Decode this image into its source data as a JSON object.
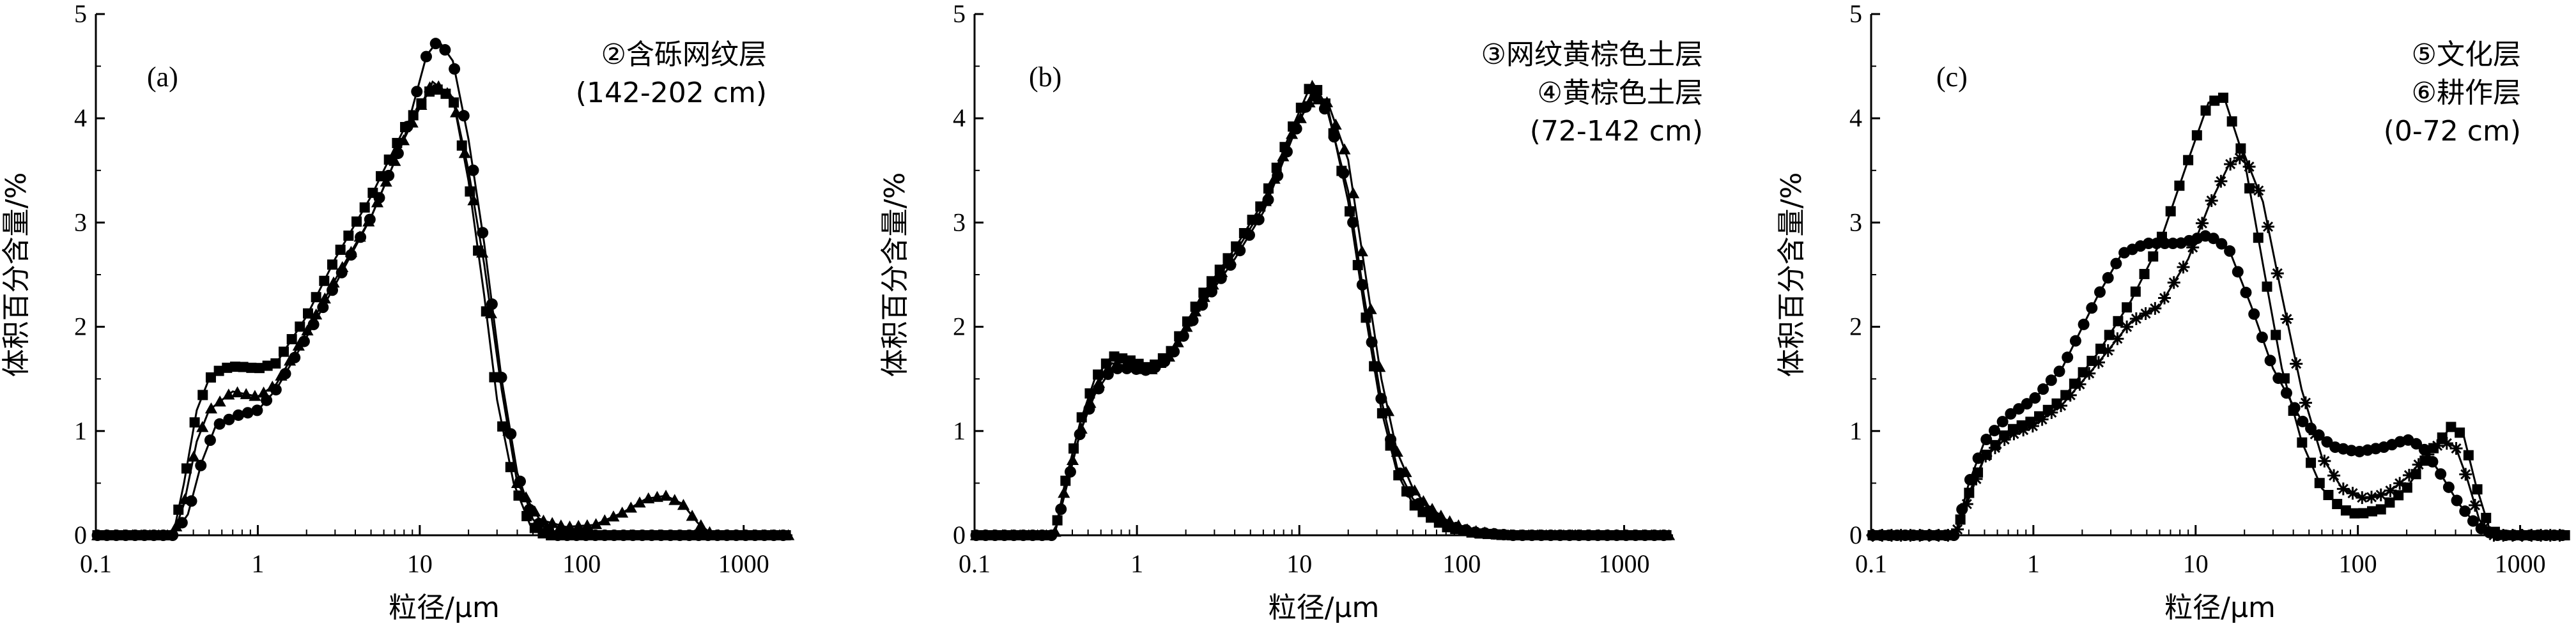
{
  "chart_data": [
    {
      "type": "line",
      "panel_label": "(a)",
      "annotation": [
        "②含砾网纹层",
        "(142-202 cm)"
      ],
      "xlabel": "粒径/μm",
      "ylabel": "体积百分含量/%",
      "x_scale": "log",
      "xlim": [
        0.1,
        2000
      ],
      "ylim": [
        0,
        5
      ],
      "xticks": [
        "0.1",
        "1",
        "10",
        "100",
        "1000"
      ],
      "yticks": [
        "0",
        "1",
        "2",
        "3",
        "4",
        "5"
      ],
      "series": [
        {
          "marker": "square",
          "points": [
            [
              0.1,
              0
            ],
            [
              0.3,
              0
            ],
            [
              0.35,
              0.5
            ],
            [
              0.42,
              1.2
            ],
            [
              0.5,
              1.5
            ],
            [
              0.6,
              1.6
            ],
            [
              0.75,
              1.62
            ],
            [
              1,
              1.6
            ],
            [
              1.3,
              1.65
            ],
            [
              2,
              2.1
            ],
            [
              3,
              2.65
            ],
            [
              5,
              3.25
            ],
            [
              8,
              3.9
            ],
            [
              12,
              4.3
            ],
            [
              16,
              4.2
            ],
            [
              20,
              3.4
            ],
            [
              25,
              2.3
            ],
            [
              30,
              1.3
            ],
            [
              38,
              0.5
            ],
            [
              48,
              0.1
            ],
            [
              60,
              0
            ],
            [
              100,
              0
            ],
            [
              2000,
              0
            ]
          ]
        },
        {
          "marker": "triangle",
          "points": [
            [
              0.1,
              0
            ],
            [
              0.3,
              0
            ],
            [
              0.35,
              0.3
            ],
            [
              0.42,
              0.9
            ],
            [
              0.5,
              1.2
            ],
            [
              0.7,
              1.38
            ],
            [
              1,
              1.33
            ],
            [
              1.3,
              1.45
            ],
            [
              2,
              1.95
            ],
            [
              3,
              2.45
            ],
            [
              5,
              3.05
            ],
            [
              8,
              3.8
            ],
            [
              12,
              4.35
            ],
            [
              16,
              4.2
            ],
            [
              20,
              3.5
            ],
            [
              25,
              2.6
            ],
            [
              32,
              1.4
            ],
            [
              40,
              0.5
            ],
            [
              55,
              0.15
            ],
            [
              80,
              0.08
            ],
            [
              120,
              0.1
            ],
            [
              180,
              0.22
            ],
            [
              250,
              0.35
            ],
            [
              330,
              0.38
            ],
            [
              420,
              0.3
            ],
            [
              520,
              0.12
            ],
            [
              650,
              0
            ],
            [
              2000,
              0
            ]
          ]
        },
        {
          "marker": "circle",
          "points": [
            [
              0.1,
              0
            ],
            [
              0.3,
              0
            ],
            [
              0.37,
              0.2
            ],
            [
              0.45,
              0.7
            ],
            [
              0.55,
              1.05
            ],
            [
              0.75,
              1.15
            ],
            [
              1,
              1.2
            ],
            [
              1.3,
              1.4
            ],
            [
              2,
              1.9
            ],
            [
              3,
              2.4
            ],
            [
              5,
              3.05
            ],
            [
              8,
              3.8
            ],
            [
              11,
              4.6
            ],
            [
              13,
              4.75
            ],
            [
              16,
              4.55
            ],
            [
              20,
              3.8
            ],
            [
              25,
              2.8
            ],
            [
              32,
              1.5
            ],
            [
              40,
              0.6
            ],
            [
              50,
              0.15
            ],
            [
              70,
              0
            ],
            [
              2000,
              0
            ]
          ]
        }
      ]
    },
    {
      "type": "line",
      "panel_label": "(b)",
      "annotation": [
        "③网纹黄棕色土层",
        "④黄棕色土层",
        "(72-142 cm)"
      ],
      "xlabel": "粒径/μm",
      "ylabel": "体积百分含量/%",
      "x_scale": "log",
      "xlim": [
        0.1,
        2000
      ],
      "ylim": [
        0,
        5
      ],
      "xticks": [
        "0.1",
        "1",
        "10",
        "100",
        "1000"
      ],
      "yticks": [
        "0",
        "1",
        "2",
        "3",
        "4",
        "5"
      ],
      "series": [
        {
          "marker": "square",
          "points": [
            [
              0.1,
              0
            ],
            [
              0.31,
              0
            ],
            [
              0.36,
              0.5
            ],
            [
              0.45,
              1.1
            ],
            [
              0.55,
              1.5
            ],
            [
              0.7,
              1.72
            ],
            [
              0.9,
              1.68
            ],
            [
              1.2,
              1.6
            ],
            [
              1.6,
              1.75
            ],
            [
              2.5,
              2.3
            ],
            [
              4,
              2.75
            ],
            [
              6,
              3.2
            ],
            [
              9,
              3.9
            ],
            [
              12,
              4.35
            ],
            [
              15,
              4.1
            ],
            [
              20,
              3.2
            ],
            [
              25,
              2.2
            ],
            [
              32,
              1.2
            ],
            [
              40,
              0.6
            ],
            [
              50,
              0.3
            ],
            [
              60,
              0.2
            ],
            [
              80,
              0.08
            ],
            [
              120,
              0.02
            ],
            [
              200,
              0
            ],
            [
              2000,
              0
            ]
          ]
        },
        {
          "marker": "triangle",
          "points": [
            [
              0.1,
              0
            ],
            [
              0.31,
              0
            ],
            [
              0.36,
              0.45
            ],
            [
              0.45,
              1.0
            ],
            [
              0.55,
              1.4
            ],
            [
              0.7,
              1.65
            ],
            [
              0.9,
              1.62
            ],
            [
              1.2,
              1.58
            ],
            [
              1.6,
              1.72
            ],
            [
              2.5,
              2.25
            ],
            [
              4,
              2.7
            ],
            [
              6,
              3.15
            ],
            [
              9,
              3.85
            ],
            [
              12,
              4.2
            ],
            [
              15,
              4.15
            ],
            [
              20,
              3.6
            ],
            [
              25,
              2.6
            ],
            [
              32,
              1.5
            ],
            [
              40,
              0.8
            ],
            [
              50,
              0.45
            ],
            [
              60,
              0.3
            ],
            [
              80,
              0.15
            ],
            [
              110,
              0.05
            ],
            [
              180,
              0
            ],
            [
              2000,
              0
            ]
          ]
        },
        {
          "marker": "circle",
          "points": [
            [
              0.1,
              0
            ],
            [
              0.31,
              0
            ],
            [
              0.36,
              0.4
            ],
            [
              0.45,
              1.0
            ],
            [
              0.55,
              1.35
            ],
            [
              0.7,
              1.6
            ],
            [
              0.9,
              1.6
            ],
            [
              1.2,
              1.58
            ],
            [
              1.6,
              1.7
            ],
            [
              2.5,
              2.2
            ],
            [
              4,
              2.65
            ],
            [
              6,
              3.1
            ],
            [
              9,
              3.8
            ],
            [
              12,
              4.25
            ],
            [
              15,
              4.05
            ],
            [
              20,
              3.3
            ],
            [
              25,
              2.3
            ],
            [
              32,
              1.3
            ],
            [
              40,
              0.65
            ],
            [
              50,
              0.35
            ],
            [
              60,
              0.25
            ],
            [
              80,
              0.1
            ],
            [
              120,
              0.03
            ],
            [
              200,
              0
            ],
            [
              2000,
              0
            ]
          ]
        }
      ]
    },
    {
      "type": "line",
      "panel_label": "(c)",
      "annotation": [
        "⑤文化层",
        "⑥耕作层",
        "(0-72 cm)"
      ],
      "xlabel": "粒径/μm",
      "ylabel": "体积百分含量/%",
      "x_scale": "log",
      "xlim": [
        0.1,
        2000
      ],
      "ylim": [
        0,
        5
      ],
      "xticks": [
        "0.1",
        "1",
        "10",
        "100",
        "1000"
      ],
      "yticks": [
        "0",
        "1",
        "2",
        "3",
        "4",
        "5"
      ],
      "series": [
        {
          "marker": "circle",
          "points": [
            [
              0.1,
              0
            ],
            [
              0.33,
              0
            ],
            [
              0.4,
              0.5
            ],
            [
              0.5,
              0.9
            ],
            [
              0.7,
              1.15
            ],
            [
              1,
              1.3
            ],
            [
              1.5,
              1.6
            ],
            [
              2.5,
              2.3
            ],
            [
              3.5,
              2.7
            ],
            [
              5,
              2.8
            ],
            [
              8,
              2.8
            ],
            [
              12,
              2.88
            ],
            [
              16,
              2.75
            ],
            [
              22,
              2.2
            ],
            [
              30,
              1.6
            ],
            [
              45,
              1.1
            ],
            [
              70,
              0.85
            ],
            [
              100,
              0.8
            ],
            [
              150,
              0.85
            ],
            [
              200,
              0.92
            ],
            [
              250,
              0.85
            ],
            [
              320,
              0.6
            ],
            [
              420,
              0.3
            ],
            [
              550,
              0.08
            ],
            [
              700,
              0
            ],
            [
              2000,
              0
            ]
          ]
        },
        {
          "marker": "square",
          "points": [
            [
              0.1,
              0
            ],
            [
              0.33,
              0
            ],
            [
              0.4,
              0.4
            ],
            [
              0.5,
              0.75
            ],
            [
              0.7,
              1.0
            ],
            [
              1,
              1.1
            ],
            [
              1.5,
              1.3
            ],
            [
              2.5,
              1.75
            ],
            [
              4,
              2.25
            ],
            [
              6,
              2.8
            ],
            [
              9,
              3.6
            ],
            [
              12,
              4.15
            ],
            [
              15,
              4.2
            ],
            [
              20,
              3.6
            ],
            [
              26,
              2.6
            ],
            [
              34,
              1.6
            ],
            [
              45,
              0.9
            ],
            [
              60,
              0.45
            ],
            [
              80,
              0.25
            ],
            [
              100,
              0.2
            ],
            [
              140,
              0.25
            ],
            [
              200,
              0.45
            ],
            [
              280,
              0.8
            ],
            [
              380,
              1.05
            ],
            [
              450,
              0.95
            ],
            [
              530,
              0.5
            ],
            [
              650,
              0.05
            ],
            [
              800,
              0
            ],
            [
              2000,
              0
            ]
          ]
        },
        {
          "marker": "star",
          "points": [
            [
              0.1,
              0
            ],
            [
              0.33,
              0
            ],
            [
              0.4,
              0.35
            ],
            [
              0.5,
              0.75
            ],
            [
              0.7,
              0.95
            ],
            [
              1,
              1.05
            ],
            [
              1.5,
              1.25
            ],
            [
              2.5,
              1.65
            ],
            [
              4,
              2.05
            ],
            [
              6,
              2.2
            ],
            [
              9,
              2.65
            ],
            [
              12,
              3.15
            ],
            [
              16,
              3.55
            ],
            [
              20,
              3.65
            ],
            [
              26,
              3.2
            ],
            [
              34,
              2.3
            ],
            [
              45,
              1.4
            ],
            [
              60,
              0.75
            ],
            [
              80,
              0.45
            ],
            [
              110,
              0.35
            ],
            [
              150,
              0.4
            ],
            [
              200,
              0.55
            ],
            [
              260,
              0.75
            ],
            [
              330,
              0.9
            ],
            [
              400,
              0.85
            ],
            [
              470,
              0.55
            ],
            [
              560,
              0.15
            ],
            [
              650,
              0
            ],
            [
              2000,
              0
            ]
          ]
        }
      ]
    }
  ]
}
